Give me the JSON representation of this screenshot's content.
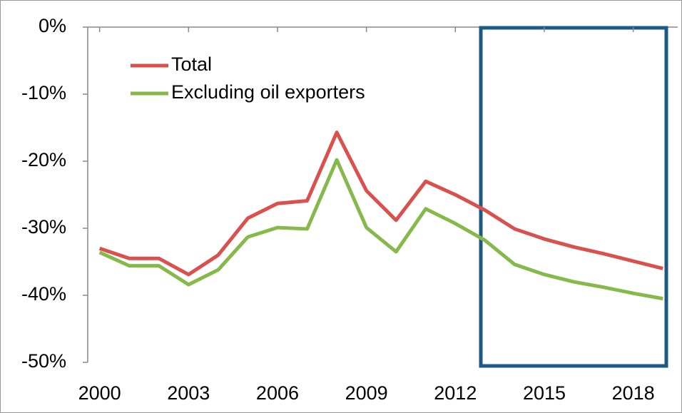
{
  "chart_data": {
    "type": "line",
    "x": [
      2000,
      2001,
      2002,
      2003,
      2004,
      2005,
      2006,
      2007,
      2008,
      2009,
      2010,
      2011,
      2012,
      2013,
      2014,
      2015,
      2016,
      2017,
      2018,
      2019
    ],
    "series": [
      {
        "name": "Total",
        "color": "#d9504c",
        "values": [
          -33.0,
          -34.5,
          -34.5,
          -36.9,
          -34.0,
          -28.5,
          -26.3,
          -25.9,
          -15.7,
          -24.4,
          -28.8,
          -23.0,
          -25.0,
          -27.3,
          -30.1,
          -31.6,
          -32.8,
          -33.8,
          -34.9,
          -36.0
        ]
      },
      {
        "name": "Excluding oil exporters",
        "color": "#86b94a",
        "values": [
          -33.6,
          -35.6,
          -35.6,
          -38.4,
          -36.2,
          -31.3,
          -29.9,
          -30.1,
          -19.8,
          -29.9,
          -33.5,
          -27.1,
          -29.3,
          -31.8,
          -35.4,
          -36.9,
          -38.0,
          -38.8,
          -39.7,
          -40.5
        ]
      }
    ],
    "xlim": [
      1999.6,
      2019.5
    ],
    "xticks": [
      2000,
      2003,
      2006,
      2009,
      2012,
      2015,
      2018
    ],
    "ylim": [
      -50,
      0
    ],
    "yticks": [
      {
        "value": 0,
        "label": "0%"
      },
      {
        "value": -10,
        "label": "-10%"
      },
      {
        "value": -20,
        "label": "-20%"
      },
      {
        "value": -30,
        "label": "-30%"
      },
      {
        "value": -40,
        "label": "-40%"
      },
      {
        "value": -50,
        "label": "-50%"
      }
    ],
    "legend": "upper left"
  }
}
